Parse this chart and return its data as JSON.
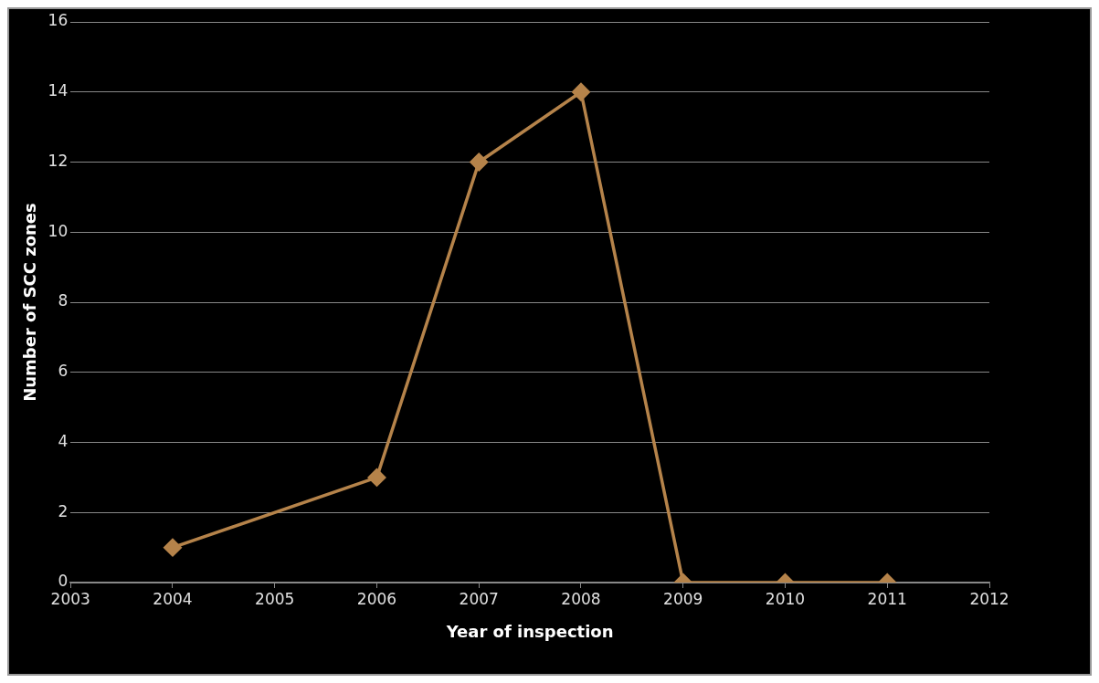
{
  "chart_data": {
    "type": "line",
    "xlabel": "Year of inspection",
    "ylabel": "Number of SCC zones",
    "x": [
      2004,
      2006,
      2007,
      2008,
      2009,
      2010,
      2011
    ],
    "series": [
      {
        "color": "#b5834a",
        "values": [
          1,
          3,
          12,
          14,
          0,
          0,
          0
        ]
      }
    ],
    "xlim": [
      2003,
      2012
    ],
    "xticks": [
      2003,
      2004,
      2005,
      2006,
      2007,
      2008,
      2009,
      2010,
      2011,
      2012
    ],
    "ylim": [
      0,
      16
    ],
    "yticks": [
      0,
      2,
      4,
      6,
      8,
      10,
      12,
      14,
      16
    ],
    "grid": "y",
    "legend": false,
    "marker": "diamond",
    "line_style": "solid"
  }
}
